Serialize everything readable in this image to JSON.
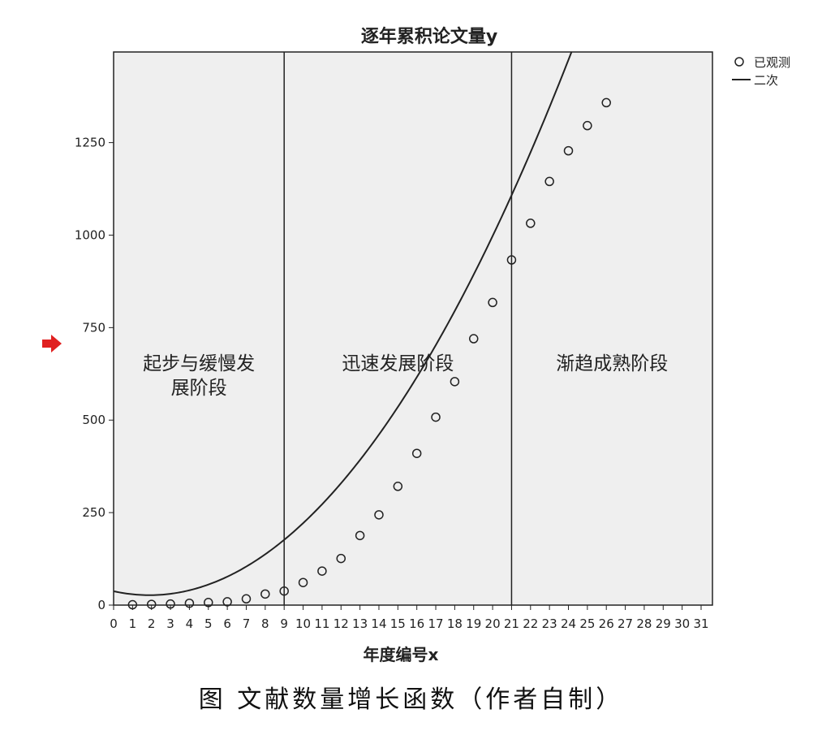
{
  "chart_data": {
    "type": "scatter",
    "title": "逐年累积论文量y",
    "xlabel": "年度编号x",
    "ylabel": "",
    "xlim": [
      0,
      31.6
    ],
    "ylim": [
      0,
      1495
    ],
    "x_ticks": [
      0,
      1,
      2,
      3,
      4,
      5,
      6,
      7,
      8,
      9,
      10,
      11,
      12,
      13,
      14,
      15,
      16,
      17,
      18,
      19,
      20,
      21,
      22,
      23,
      24,
      25,
      26,
      27,
      28,
      29,
      30,
      31
    ],
    "y_ticks": [
      0,
      250,
      500,
      750,
      1000,
      1250
    ],
    "grid": false,
    "legend_position": "top-right, outside plot",
    "series": [
      {
        "name": "已观测",
        "style": "open-circle",
        "x": [
          1,
          2,
          3,
          4,
          5,
          6,
          7,
          8,
          9,
          10,
          11,
          12,
          13,
          14,
          15,
          16,
          17,
          18,
          19,
          20,
          21,
          22,
          23,
          24,
          25,
          26
        ],
        "y": [
          1,
          2,
          3,
          5,
          7,
          9,
          17,
          30,
          38,
          61,
          92,
          126,
          188,
          244,
          321,
          410,
          508,
          604,
          720,
          818,
          933,
          1032,
          1145,
          1228,
          1296,
          1358
        ]
      },
      {
        "name": "二次",
        "style": "line",
        "quadratic": {
          "a": 2.96,
          "b": -11.2,
          "c": 37.5
        },
        "x_range": [
          0,
          26.5
        ]
      }
    ],
    "regions": [
      {
        "label": "起步与缓慢发展阶段",
        "lines": [
          "起步与缓慢发",
          "展阶段"
        ],
        "x_start": 0,
        "x_end": 9
      },
      {
        "label": "迅速发展阶段",
        "lines": [
          "迅速发展阶段"
        ],
        "x_start": 9,
        "x_end": 21
      },
      {
        "label": "渐趋成熟阶段",
        "lines": [
          "渐趋成熟阶段"
        ],
        "x_start": 21,
        "x_end": 31.6
      }
    ],
    "dividers_x": [
      9,
      21
    ]
  },
  "caption": "图 文献数量增长函数（作者自制）",
  "colors": {
    "plot_background": "#efefef",
    "ink": "#222222",
    "marker_arrow": "#e02020"
  },
  "icons": {
    "side_marker": "red-arrow-icon"
  }
}
